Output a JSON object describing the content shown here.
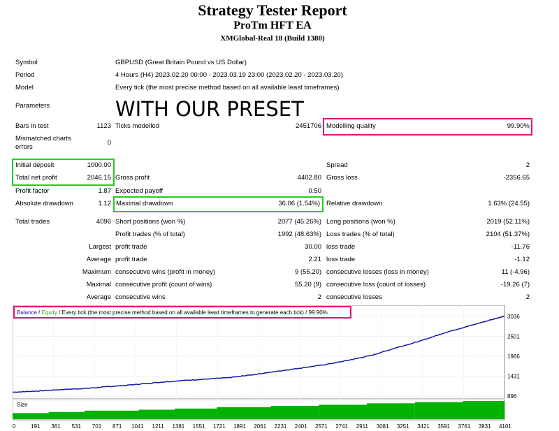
{
  "header": {
    "title": "Strategy Tester Report",
    "ea_name": "ProTm HFT EA",
    "server": "XMGlobal-Real 18 (Build 1380)"
  },
  "info": {
    "symbol_label": "Symbol",
    "symbol_value": "GBPUSD (Great Britain Pound vs US Dollar)",
    "period_label": "Period",
    "period_value": "4 Hours (H4) 2023.02.20 00:00 - 2023.03.19 23:00 (2023.02.20 - 2023.03.20)",
    "model_label": "Model",
    "model_value": "Every tick (the most precise method based on all available least timeframes)",
    "parameters_label": "Parameters",
    "parameters_value": "WITH OUR PRESET"
  },
  "stats": {
    "bars_label": "Bars in test",
    "bars_value": "1123",
    "ticks_label": "Ticks modelled",
    "ticks_value": "2451706",
    "quality_label": "Modelling quality",
    "quality_value": "99.90%",
    "mismatch_label_1": "Mismatched charts",
    "mismatch_label_2": "errors",
    "mismatch_value": "0",
    "deposit_label": "Initial deposit",
    "deposit_value": "1000.00",
    "spread_label": "Spread",
    "spread_value": "2",
    "net_label": "Total net profit",
    "net_value": "2046.15",
    "gross_profit_label": "Gross profit",
    "gross_profit_value": "4402.80",
    "gross_loss_label": "Gross loss",
    "gross_loss_value": "-2356.65",
    "pf_label": "Profit factor",
    "pf_value": "1.87",
    "payoff_label": "Expected payoff",
    "payoff_value": "0.50",
    "abs_dd_label": "Absolute drawdown",
    "abs_dd_value": "1.12",
    "max_dd_label": "Maximal drawdown",
    "max_dd_value": "36.06 (1.54%)",
    "rel_dd_label": "Relative drawdown",
    "rel_dd_value": "1.63% (24.55)",
    "trades_label": "Total trades",
    "trades_value": "4096",
    "short_label": "Short positions (won %)",
    "short_value": "2077 (45.26%)",
    "long_label": "Long positions (won %)",
    "long_value": "2019 (52.11%)",
    "profit_trades_label": "Profit trades (% of total)",
    "profit_trades_value": "1992 (48.63%)",
    "loss_trades_label": "Loss trades (% of total)",
    "loss_trades_value": "2104 (51.37%)",
    "largest_label": "Largest",
    "largest_profit_label": "profit trade",
    "largest_profit_value": "30.00",
    "largest_loss_label": "loss trade",
    "largest_loss_value": "-11.76",
    "average_label": "Average",
    "average_profit_label": "profit trade",
    "average_profit_value": "2.21",
    "average_loss_label": "loss trade",
    "average_loss_value": "-1.12",
    "maximum_label": "Maximum",
    "max_cons_wins_label": "consecutive wins (profit in money)",
    "max_cons_wins_value": "9 (55.20)",
    "max_cons_losses_label": "consecutive losses (loss in money)",
    "max_cons_losses_value": "11 (-4.96)",
    "maximal_label": "Maximal",
    "maximal_profit_label": "consecutive profit (count of wins)",
    "maximal_profit_value": "55.20 (9)",
    "maximal_loss_label": "consecutive loss (count of losses)",
    "maximal_loss_value": "-19.26 (7)",
    "avg_label": "Average",
    "avg_cons_wins_label": "consecutive wins",
    "avg_cons_wins_value": "2",
    "avg_cons_losses_label": "consecutive losses",
    "avg_cons_losses_value": "2"
  },
  "colors": {
    "highlight_pink": "#e0157a",
    "highlight_green": "#1fd11f",
    "balance_line": "#1a1aa6",
    "equity_legend": "#22aa22",
    "size_bars": "#00b300"
  },
  "chart_data": [
    {
      "type": "line",
      "legend": {
        "balance": "Balance",
        "sep": "/",
        "equity": "Equity",
        "desc": "/ Every tick (the most precise method based on all available least timeframes to generate each tick)",
        "quality": "/ 99.90%"
      },
      "y_ticks": [
        "3036",
        "2501",
        "1966",
        "1431",
        "896"
      ],
      "ylim": [
        896,
        3036
      ],
      "xlim": [
        0,
        4096
      ],
      "series": [
        {
          "name": "Balance",
          "x": [
            0,
            200,
            400,
            600,
            800,
            1000,
            1200,
            1400,
            1600,
            1800,
            2000,
            2200,
            2400,
            2600,
            2800,
            3000,
            3200,
            3400,
            3600,
            3800,
            4000,
            4096
          ],
          "y": [
            1000,
            1030,
            1070,
            1100,
            1150,
            1200,
            1260,
            1310,
            1350,
            1390,
            1470,
            1560,
            1650,
            1740,
            1860,
            2000,
            2200,
            2380,
            2600,
            2780,
            2960,
            3046
          ]
        }
      ]
    },
    {
      "type": "bar",
      "label": "Size",
      "x_ticks": [
        "0",
        "191",
        "361",
        "531",
        "701",
        "871",
        "1041",
        "1211",
        "1381",
        "1551",
        "1721",
        "1891",
        "2061",
        "2231",
        "2401",
        "2571",
        "2741",
        "2911",
        "3081",
        "3251",
        "3421",
        "3591",
        "3761",
        "3931",
        "4101"
      ],
      "xlim": [
        0,
        4096
      ],
      "steps": [
        {
          "from": 0,
          "to": 300,
          "level": 0.32
        },
        {
          "from": 300,
          "to": 600,
          "level": 0.38
        },
        {
          "from": 600,
          "to": 1050,
          "level": 0.45
        },
        {
          "from": 1050,
          "to": 1350,
          "level": 0.5
        },
        {
          "from": 1350,
          "to": 1700,
          "level": 0.56
        },
        {
          "from": 1700,
          "to": 2150,
          "level": 0.63
        },
        {
          "from": 2150,
          "to": 2550,
          "level": 0.7
        },
        {
          "from": 2550,
          "to": 2950,
          "level": 0.76
        },
        {
          "from": 2950,
          "to": 3350,
          "level": 0.84
        },
        {
          "from": 3350,
          "to": 3750,
          "level": 0.9
        },
        {
          "from": 3750,
          "to": 4096,
          "level": 0.96
        }
      ]
    }
  ]
}
